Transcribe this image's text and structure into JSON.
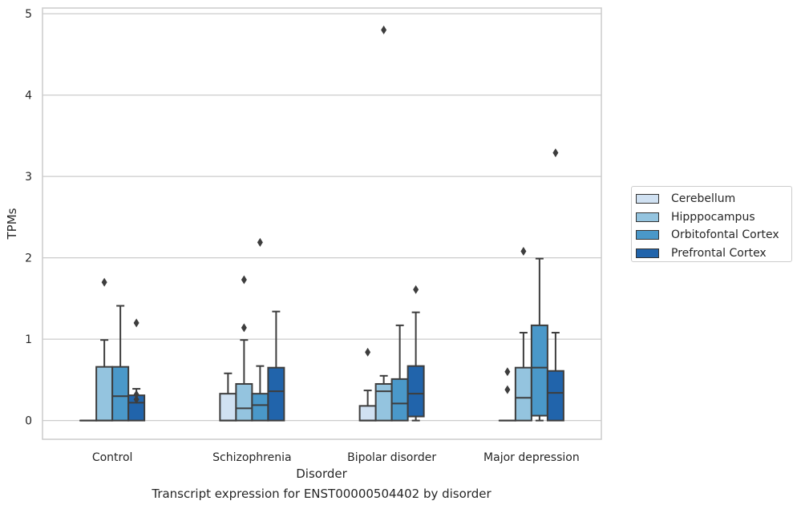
{
  "chart_data": {
    "type": "box",
    "caption": "Transcript expression for ENST00000504402 by disorder",
    "xlabel": "Disorder",
    "ylabel": "TPMs",
    "ylim": [
      -0.23,
      5.07
    ],
    "yticks": [
      0,
      1,
      2,
      3,
      4,
      5
    ],
    "grid": "horizontal",
    "legend_position": "right",
    "categories": [
      "Control",
      "Schizophrenia",
      "Bipolar disorder",
      "Major depression"
    ],
    "series": [
      {
        "name": "Cerebellum",
        "color": "#d0e1f2",
        "boxes": [
          {
            "q1": 0,
            "median": 0,
            "q3": 0,
            "whisker_low": 0,
            "whisker_high": 0,
            "outliers": []
          },
          {
            "q1": 0,
            "median": 0,
            "q3": 0.33,
            "whisker_low": 0,
            "whisker_high": 0.58,
            "outliers": []
          },
          {
            "q1": 0,
            "median": 0,
            "q3": 0.18,
            "whisker_low": 0,
            "whisker_high": 0.37,
            "outliers": [
              0.84
            ]
          },
          {
            "q1": 0,
            "median": 0,
            "q3": 0,
            "whisker_low": 0,
            "whisker_high": 0,
            "outliers": [
              0.38,
              0.6
            ]
          }
        ]
      },
      {
        "name": "Hipppocampus",
        "color": "#94c4df",
        "boxes": [
          {
            "q1": 0,
            "median": 0,
            "q3": 0.66,
            "whisker_low": 0,
            "whisker_high": 0.99,
            "outliers": [
              1.7
            ]
          },
          {
            "q1": 0,
            "median": 0.15,
            "q3": 0.45,
            "whisker_low": 0,
            "whisker_high": 0.99,
            "outliers": [
              1.14,
              1.73
            ]
          },
          {
            "q1": 0,
            "median": 0.36,
            "q3": 0.45,
            "whisker_low": 0,
            "whisker_high": 0.55,
            "outliers": [
              4.8
            ]
          },
          {
            "q1": 0,
            "median": 0.28,
            "q3": 0.65,
            "whisker_low": 0,
            "whisker_high": 1.08,
            "outliers": [
              2.08
            ]
          }
        ]
      },
      {
        "name": "Orbitofontal Cortex",
        "color": "#4a98c9",
        "boxes": [
          {
            "q1": 0,
            "median": 0.3,
            "q3": 0.66,
            "whisker_low": 0,
            "whisker_high": 1.41,
            "outliers": []
          },
          {
            "q1": 0,
            "median": 0.19,
            "q3": 0.33,
            "whisker_low": 0,
            "whisker_high": 0.67,
            "outliers": [
              2.19
            ]
          },
          {
            "q1": 0,
            "median": 0.21,
            "q3": 0.51,
            "whisker_low": 0,
            "whisker_high": 1.17,
            "outliers": []
          },
          {
            "q1": 0.06,
            "median": 0.65,
            "q3": 1.17,
            "whisker_low": 0,
            "whisker_high": 1.99,
            "outliers": []
          }
        ]
      },
      {
        "name": "Prefrontal Cortex",
        "color": "#2164ab",
        "boxes": [
          {
            "q1": 0,
            "median": 0.22,
            "q3": 0.31,
            "whisker_low": 0,
            "whisker_high": 0.39,
            "outliers": [
              0.26,
              0.32,
              1.2
            ]
          },
          {
            "q1": 0,
            "median": 0.36,
            "q3": 0.65,
            "whisker_low": 0,
            "whisker_high": 1.34,
            "outliers": []
          },
          {
            "q1": 0.05,
            "median": 0.33,
            "q3": 0.67,
            "whisker_low": 0,
            "whisker_high": 1.33,
            "outliers": [
              1.61
            ]
          },
          {
            "q1": 0,
            "median": 0.34,
            "q3": 0.61,
            "whisker_low": 0,
            "whisker_high": 1.08,
            "outliers": [
              3.29
            ]
          }
        ]
      }
    ]
  }
}
